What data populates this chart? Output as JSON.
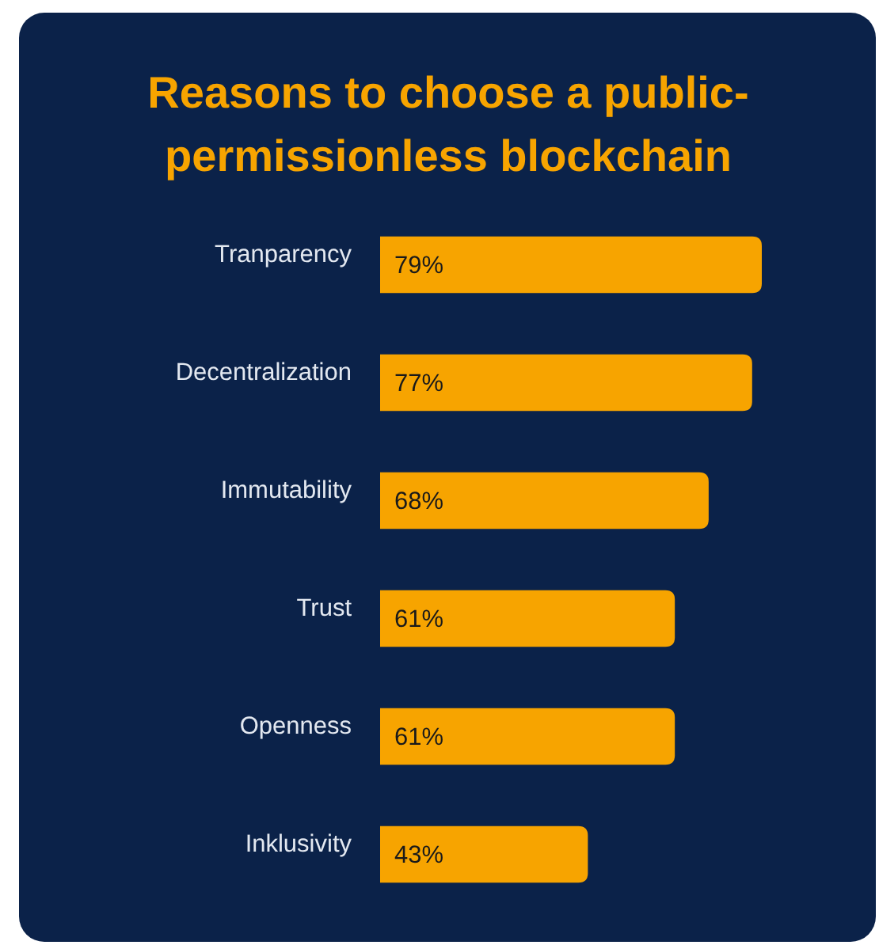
{
  "chart_data": {
    "type": "bar",
    "orientation": "horizontal",
    "title": "Reasons to choose a public-permissionless blockchain",
    "categories": [
      "Tranparency",
      "Decentralization",
      "Immutability",
      "Trust",
      "Openness",
      "Inklusivity"
    ],
    "values": [
      79,
      77,
      68,
      61,
      61,
      43
    ],
    "value_labels": [
      "79%",
      "77%",
      "68%",
      "61%",
      "61%",
      "43%"
    ],
    "color": "#f7a400"
  }
}
